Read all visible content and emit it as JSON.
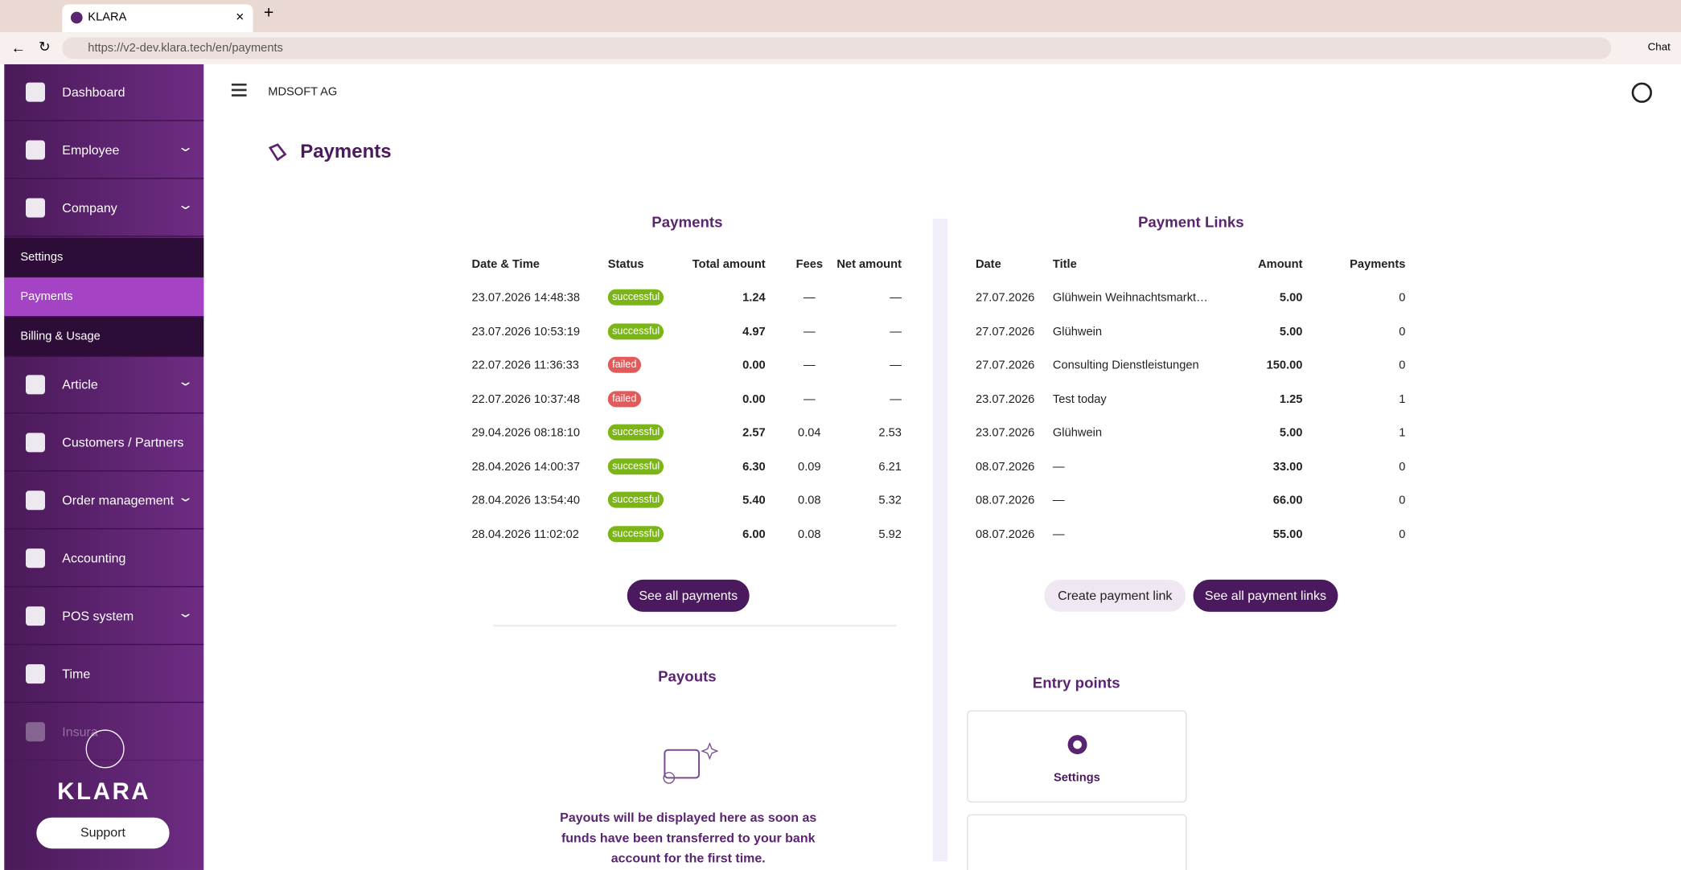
{
  "browser": {
    "tab_title": "KLARA",
    "url": "https://v2-dev.klara.tech/en/payments",
    "chat": "Chat"
  },
  "sidebar": {
    "items": [
      "Dashboard",
      "Employee",
      "Company",
      "Settings",
      "Payments",
      "Billing & Usage",
      "Article",
      "Customers / Partners",
      "Order management",
      "Accounting",
      "POS system",
      "Time",
      "Insura"
    ],
    "brand": "KLARA",
    "support": "Support"
  },
  "header": {
    "company": "MDSOFT AG"
  },
  "page_title": "Payments",
  "payments": {
    "title": "Payments",
    "columns": [
      "Date & Time",
      "Status",
      "Total amount",
      "Fees",
      "Net amount"
    ],
    "rows": [
      [
        "23.07.2026 14:48:38",
        "successful",
        "1.24",
        "—",
        "—"
      ],
      [
        "23.07.2026 10:53:19",
        "successful",
        "4.97",
        "—",
        "—"
      ],
      [
        "22.07.2026 11:36:33",
        "failed",
        "0.00",
        "—",
        "—"
      ],
      [
        "22.07.2026 10:37:48",
        "failed",
        "0.00",
        "—",
        "—"
      ],
      [
        "29.04.2026 08:18:10",
        "successful",
        "2.57",
        "0.04",
        "2.53"
      ],
      [
        "28.04.2026 14:00:37",
        "successful",
        "6.30",
        "0.09",
        "6.21"
      ],
      [
        "28.04.2026 13:54:40",
        "successful",
        "5.40",
        "0.08",
        "5.32"
      ],
      [
        "28.04.2026 11:02:02",
        "successful",
        "6.00",
        "0.08",
        "5.92"
      ]
    ],
    "button": "See all payments"
  },
  "payment_links": {
    "title": "Payment Links",
    "columns": [
      "Date",
      "Title",
      "Amount",
      "Payments"
    ],
    "rows": [
      [
        "27.07.2026",
        "Glühwein Weihnachtsmarkt…",
        "5.00",
        "0"
      ],
      [
        "27.07.2026",
        "Glühwein",
        "5.00",
        "0"
      ],
      [
        "27.07.2026",
        "Consulting Dienstleistungen",
        "150.00",
        "0"
      ],
      [
        "23.07.2026",
        "Test today",
        "1.25",
        "1"
      ],
      [
        "23.07.2026",
        "Glühwein",
        "5.00",
        "1"
      ],
      [
        "08.07.2026",
        "—",
        "33.00",
        "0"
      ],
      [
        "08.07.2026",
        "—",
        "66.00",
        "0"
      ],
      [
        "08.07.2026",
        "—",
        "55.00",
        "0"
      ]
    ],
    "buttons": [
      "Create payment link",
      "See all payment links"
    ]
  },
  "payouts": {
    "title": "Payouts",
    "message": "Payouts will be displayed here as soon as funds have been transferred to your bank account for the first time."
  },
  "entry_points": {
    "title": "Entry points",
    "items": [
      "Settings"
    ]
  }
}
